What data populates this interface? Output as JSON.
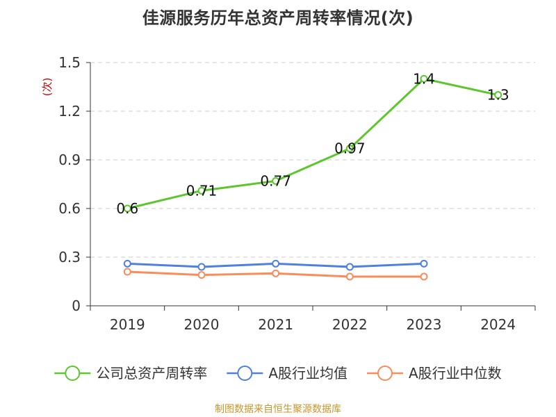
{
  "title": "佳源服务历年总资产周转率情况(次)",
  "source": "制图数据来自恒生聚源数据库",
  "chart_data": {
    "type": "line",
    "title": "佳源服务历年总资产周转率情况(次)",
    "ylabel": "(次)",
    "xlabel": "",
    "categories": [
      "2019",
      "2020",
      "2021",
      "2022",
      "2023",
      "2024"
    ],
    "ylim": [
      0,
      1.5
    ],
    "yticks": [
      "0",
      "0.3",
      "0.6",
      "0.9",
      "1.2",
      "1.5"
    ],
    "ytick_values": [
      0,
      0.3,
      0.6,
      0.9,
      1.2,
      1.5
    ],
    "grid": true,
    "legend_position": "bottom",
    "series": [
      {
        "name": "公司总资产周转率",
        "color": "#5cc62d",
        "values": [
          0.6,
          0.71,
          0.77,
          0.97,
          1.4,
          1.3
        ],
        "labels": [
          "0.6",
          "0.71",
          "0.77",
          "0.97",
          "1.4",
          "1.3"
        ],
        "show_labels": true
      },
      {
        "name": "A股行业均值",
        "color": "#4f7fe0",
        "values": [
          0.26,
          0.24,
          0.26,
          0.24,
          0.26,
          null
        ],
        "show_labels": false
      },
      {
        "name": "A股行业中位数",
        "color": "#f98c5a",
        "values": [
          0.21,
          0.19,
          0.2,
          0.18,
          0.18,
          null
        ],
        "show_labels": false
      }
    ]
  }
}
